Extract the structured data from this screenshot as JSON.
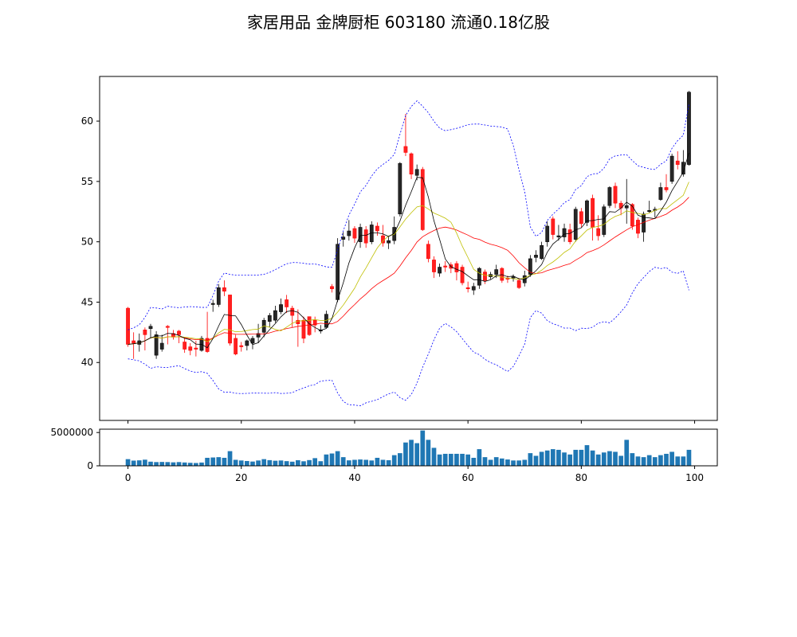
{
  "chart_data": {
    "type": "candlestick",
    "title": "家居用品 金牌厨柜 603180 流通0.18亿股",
    "x_ticks": [
      "0",
      "20",
      "40",
      "60",
      "80",
      "100"
    ],
    "price_ticks": [
      "40",
      "45",
      "50",
      "55",
      "60"
    ],
    "volume_ticks": [
      "0",
      "5000000"
    ],
    "xlim": [
      -5,
      104
    ],
    "price_ylim": [
      35.2,
      63.7
    ],
    "volume_ylim": [
      0,
      5500000
    ],
    "colors": {
      "up": "#000000",
      "down": "#ff0000",
      "volume": "#1f77b4",
      "ma_short": "#000000",
      "ma_mid": "#bfbf00",
      "ma_long": "#ff0000",
      "band": "#0000ff"
    },
    "candles": [
      [
        44.5,
        41.5,
        44.6,
        41.3
      ],
      [
        41.8,
        41.6,
        42.5,
        40.3
      ],
      [
        41.5,
        41.8,
        42.4,
        40.9
      ],
      [
        42.7,
        42.3,
        42.9,
        41.0
      ],
      [
        42.8,
        43.0,
        43.2,
        42.0
      ],
      [
        40.6,
        42.3,
        42.6,
        40.3
      ],
      [
        41.1,
        41.6,
        42.3,
        40.9
      ],
      [
        43.0,
        42.9,
        43.1,
        41.5
      ],
      [
        42.4,
        42.1,
        42.7,
        41.9
      ],
      [
        42.6,
        42.3,
        42.7,
        41.6
      ],
      [
        41.7,
        41.1,
        42.0,
        40.8
      ],
      [
        41.3,
        41.0,
        41.6,
        40.6
      ],
      [
        41.2,
        41.1,
        41.8,
        40.5
      ],
      [
        41.0,
        42.0,
        42.2,
        40.9
      ],
      [
        42.0,
        40.9,
        44.2,
        40.8
      ],
      [
        44.8,
        44.9,
        45.2,
        44.2
      ],
      [
        44.8,
        46.2,
        46.5,
        44.6
      ],
      [
        46.2,
        45.9,
        46.8,
        45.5
      ],
      [
        45.6,
        41.6,
        45.6,
        41.4
      ],
      [
        42.0,
        40.7,
        42.3,
        40.6
      ],
      [
        41.4,
        41.3,
        41.7,
        40.9
      ],
      [
        41.4,
        41.8,
        41.9,
        41.0
      ],
      [
        41.6,
        42.0,
        42.2,
        41.1
      ],
      [
        42.1,
        42.4,
        43.2,
        41.6
      ],
      [
        42.5,
        43.5,
        43.7,
        42.1
      ],
      [
        43.4,
        43.9,
        44.1,
        42.9
      ],
      [
        43.5,
        44.3,
        44.7,
        43.3
      ],
      [
        44.2,
        44.8,
        45.3,
        44.0
      ],
      [
        45.2,
        44.6,
        45.6,
        44.1
      ],
      [
        44.5,
        43.9,
        44.7,
        42.9
      ],
      [
        43.5,
        43.2,
        44.4,
        41.3
      ],
      [
        43.5,
        42.0,
        43.8,
        41.6
      ],
      [
        43.8,
        42.3,
        43.8,
        42.2
      ],
      [
        43.5,
        43.1,
        43.8,
        42.5
      ],
      [
        42.6,
        42.7,
        43.1,
        42.4
      ],
      [
        42.9,
        44.0,
        44.3,
        42.9
      ],
      [
        46.3,
        46.1,
        46.5,
        45.8
      ],
      [
        45.2,
        49.8,
        50.3,
        45.0
      ],
      [
        50.2,
        50.4,
        50.8,
        49.6
      ],
      [
        50.5,
        50.9,
        51.8,
        50.1
      ],
      [
        51.1,
        50.3,
        51.3,
        49.9
      ],
      [
        50.0,
        51.2,
        51.5,
        49.5
      ],
      [
        51.0,
        49.9,
        51.3,
        49.5
      ],
      [
        50.0,
        51.4,
        51.7,
        49.8
      ],
      [
        51.3,
        50.9,
        51.6,
        50.5
      ],
      [
        50.5,
        49.9,
        51.4,
        49.6
      ],
      [
        49.9,
        50.1,
        50.4,
        49.4
      ],
      [
        50.1,
        51.2,
        52.1,
        49.8
      ],
      [
        52.3,
        56.5,
        56.6,
        52.1
      ],
      [
        57.9,
        57.4,
        60.6,
        57.1
      ],
      [
        57.3,
        55.6,
        57.4,
        55.2
      ],
      [
        55.5,
        56.0,
        56.4,
        55.1
      ],
      [
        56.0,
        51.0,
        56.2,
        50.9
      ],
      [
        49.8,
        48.6,
        50.1,
        48.3
      ],
      [
        48.5,
        47.5,
        48.8,
        47.0
      ],
      [
        47.4,
        47.9,
        48.2,
        47.1
      ],
      [
        48.0,
        47.9,
        48.4,
        47.5
      ],
      [
        48.1,
        47.8,
        48.3,
        47.4
      ],
      [
        48.2,
        47.5,
        48.4,
        46.8
      ],
      [
        47.9,
        46.6,
        48.1,
        46.4
      ],
      [
        46.2,
        46.1,
        46.7,
        45.8
      ],
      [
        46.0,
        46.3,
        46.6,
        45.6
      ],
      [
        46.4,
        47.8,
        47.9,
        46.1
      ],
      [
        47.5,
        46.8,
        47.7,
        46.5
      ],
      [
        47.1,
        47.3,
        47.5,
        46.9
      ],
      [
        47.3,
        47.7,
        48.1,
        47.0
      ],
      [
        47.8,
        46.8,
        47.9,
        46.6
      ],
      [
        47.0,
        46.9,
        47.2,
        46.6
      ],
      [
        47.0,
        47.1,
        47.3,
        46.7
      ],
      [
        46.8,
        46.2,
        47.0,
        46.1
      ],
      [
        46.6,
        47.2,
        47.6,
        46.3
      ],
      [
        47.3,
        48.6,
        48.9,
        47.1
      ],
      [
        48.7,
        48.9,
        49.3,
        48.3
      ],
      [
        48.6,
        49.7,
        50.0,
        48.5
      ],
      [
        50.0,
        51.3,
        51.7,
        49.6
      ],
      [
        51.9,
        50.6,
        52.1,
        50.2
      ],
      [
        50.4,
        50.5,
        51.4,
        50.1
      ],
      [
        50.4,
        51.1,
        51.5,
        50.0
      ],
      [
        51.0,
        50.0,
        51.5,
        49.8
      ],
      [
        50.2,
        52.7,
        52.9,
        50.0
      ],
      [
        52.5,
        51.5,
        52.8,
        51.2
      ],
      [
        51.6,
        53.4,
        53.5,
        51.3
      ],
      [
        53.6,
        51.2,
        53.9,
        50.1
      ],
      [
        51.1,
        50.5,
        52.2,
        50.1
      ],
      [
        50.6,
        52.9,
        53.1,
        50.4
      ],
      [
        53.0,
        54.5,
        54.6,
        52.8
      ],
      [
        54.6,
        53.2,
        54.9,
        52.8
      ],
      [
        53.2,
        52.8,
        53.4,
        52.2
      ],
      [
        52.8,
        53.0,
        55.2,
        51.5
      ],
      [
        53.1,
        51.3,
        53.2,
        51.0
      ],
      [
        51.8,
        50.7,
        52.0,
        50.3
      ],
      [
        50.8,
        52.3,
        52.5,
        50.0
      ],
      [
        52.5,
        52.6,
        53.4,
        52.4
      ],
      [
        52.6,
        52.7,
        52.9,
        52.0
      ],
      [
        53.5,
        54.5,
        54.9,
        53.4
      ],
      [
        54.5,
        54.3,
        55.6,
        54.1
      ],
      [
        55.0,
        57.1,
        57.3,
        54.8
      ],
      [
        56.7,
        56.4,
        57.5,
        56.0
      ],
      [
        55.6,
        56.6,
        57.6,
        55.4
      ],
      [
        56.4,
        62.4,
        62.5,
        56.3
      ]
    ],
    "volume": [
      1000000,
      780000,
      820000,
      920000,
      620000,
      560000,
      580000,
      560000,
      520000,
      560000,
      500000,
      450000,
      420000,
      490000,
      1200000,
      1250000,
      1300000,
      1200000,
      2200000,
      900000,
      800000,
      720000,
      640000,
      800000,
      1000000,
      850000,
      760000,
      800000,
      700000,
      620000,
      840000,
      680000,
      860000,
      1150000,
      690000,
      1700000,
      1850000,
      2200000,
      1300000,
      820000,
      900000,
      950000,
      900000,
      800000,
      1200000,
      900000,
      840000,
      1600000,
      1900000,
      3500000,
      3900000,
      3400000,
      5300000,
      3900000,
      2700000,
      1700000,
      1800000,
      1800000,
      1800000,
      1800000,
      1700000,
      1200000,
      2500000,
      1300000,
      900000,
      1300000,
      1100000,
      950000,
      800000,
      800000,
      900000,
      1900000,
      1500000,
      2100000,
      2300000,
      2500000,
      2400000,
      2000000,
      1700000,
      2400000,
      2400000,
      3100000,
      2300000,
      1700000,
      2000000,
      2200000,
      2100000,
      1500000,
      3900000,
      1900000,
      1400000,
      1300000,
      1600000,
      1300000,
      1600000,
      1800000,
      2100000,
      1400000,
      1400000,
      2400000
    ]
  }
}
